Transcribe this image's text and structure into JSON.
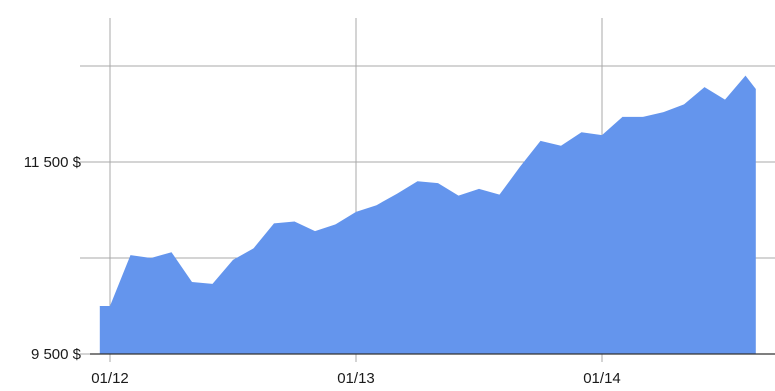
{
  "chart_data": {
    "type": "area",
    "xlabel": "",
    "ylabel": "",
    "x_ticks": [
      "01/12",
      "01/13",
      "01/14"
    ],
    "y_ticks": [
      {
        "value": 9500,
        "label": "9 500 $"
      },
      {
        "value": 11500,
        "label": "11 500 $"
      }
    ],
    "y_gridlines": [
      9500,
      10500,
      11500,
      12500
    ],
    "ylim": [
      9500,
      13200
    ],
    "grid": true,
    "legend": "none",
    "series": [
      {
        "color": "#6495ed",
        "points": [
          {
            "x": "01/11 23:00",
            "y": 10000
          },
          {
            "x": "01/12 00:00",
            "y": 10000
          },
          {
            "x": "01/12 02:00",
            "y": 10530
          },
          {
            "x": "01/12 04:00",
            "y": 10500
          },
          {
            "x": "01/12 06:00",
            "y": 10560
          },
          {
            "x": "01/12 08:00",
            "y": 10250
          },
          {
            "x": "01/12 10:00",
            "y": 10230
          },
          {
            "x": "01/12 12:00",
            "y": 10480
          },
          {
            "x": "01/12 14:00",
            "y": 10600
          },
          {
            "x": "01/12 16:00",
            "y": 10860
          },
          {
            "x": "01/12 18:00",
            "y": 10880
          },
          {
            "x": "01/12 20:00",
            "y": 10780
          },
          {
            "x": "01/12 22:00",
            "y": 10850
          },
          {
            "x": "01/13 00:00",
            "y": 10980
          },
          {
            "x": "01/13 02:00",
            "y": 11050
          },
          {
            "x": "01/13 04:00",
            "y": 11170
          },
          {
            "x": "01/13 06:00",
            "y": 11300
          },
          {
            "x": "01/13 08:00",
            "y": 11280
          },
          {
            "x": "01/13 10:00",
            "y": 11150
          },
          {
            "x": "01/13 12:00",
            "y": 11220
          },
          {
            "x": "01/13 14:00",
            "y": 11160
          },
          {
            "x": "01/13 16:00",
            "y": 11450
          },
          {
            "x": "01/13 18:00",
            "y": 11720
          },
          {
            "x": "01/13 20:00",
            "y": 11670
          },
          {
            "x": "01/13 22:00",
            "y": 11810
          },
          {
            "x": "01/14 00:00",
            "y": 11780
          },
          {
            "x": "01/14 02:00",
            "y": 11970
          },
          {
            "x": "01/14 04:00",
            "y": 11970
          },
          {
            "x": "01/14 06:00",
            "y": 12020
          },
          {
            "x": "01/14 08:00",
            "y": 12100
          },
          {
            "x": "01/14 10:00",
            "y": 12280
          },
          {
            "x": "01/14 12:00",
            "y": 12150
          },
          {
            "x": "01/14 14:00",
            "y": 12400
          },
          {
            "x": "01/14 15:00",
            "y": 12260
          }
        ]
      }
    ]
  }
}
